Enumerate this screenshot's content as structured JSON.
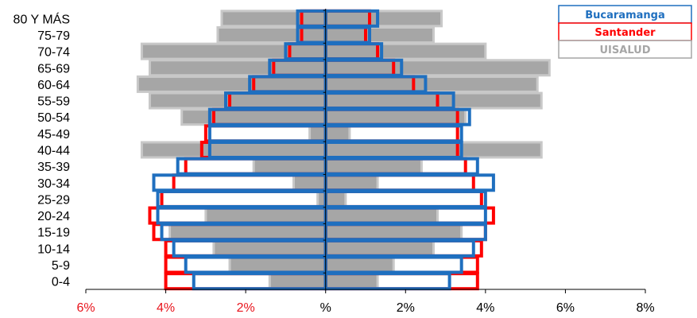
{
  "chart_data": {
    "type": "bar",
    "subtype": "population-pyramid",
    "title": "",
    "xlabel": "",
    "ylabel": "",
    "categories": [
      "80 Y MÁS",
      "75-79",
      "70-74",
      "65-69",
      "60-64",
      "55-59",
      "50-54",
      "45-49",
      "40-44",
      "35-39",
      "30-34",
      "25-29",
      "20-24",
      "15-19",
      "10-14",
      "5-9",
      "0-4"
    ],
    "xlim": [
      -6,
      8
    ],
    "x_tick_values": [
      -6,
      -4,
      -2,
      0,
      2,
      4,
      6,
      8
    ],
    "x_tick_labels": [
      "6%",
      "4%",
      "2%",
      "%",
      "2%",
      "4%",
      "6%",
      "8%"
    ],
    "x_tick_label_color_left": "#e8141c",
    "x_tick_label_color_right": "#000000",
    "legend_position": "top-right",
    "series": [
      {
        "name": "UISALUD",
        "style": "filled",
        "color": "#a6a6a6",
        "left": [
          2.6,
          2.7,
          4.6,
          4.4,
          4.7,
          4.4,
          3.6,
          0.4,
          4.6,
          1.8,
          0.8,
          0.2,
          3.0,
          3.9,
          2.8,
          2.4,
          1.4
        ],
        "right": [
          2.9,
          2.7,
          4.0,
          5.6,
          5.3,
          5.4,
          3.5,
          0.6,
          5.4,
          2.4,
          1.3,
          0.5,
          2.8,
          3.4,
          2.7,
          1.7,
          1.3
        ]
      },
      {
        "name": "Santander",
        "style": "outline",
        "color": "#ff0000",
        "left": [
          0.6,
          0.6,
          0.9,
          1.3,
          1.8,
          2.4,
          2.8,
          3.0,
          3.1,
          3.5,
          3.8,
          4.1,
          4.4,
          4.3,
          4.0,
          4.0,
          4.0
        ],
        "right": [
          1.1,
          1.0,
          1.3,
          1.7,
          2.2,
          2.8,
          3.3,
          3.3,
          3.3,
          3.5,
          3.7,
          3.9,
          4.2,
          4.0,
          3.9,
          3.8,
          3.8
        ]
      },
      {
        "name": "Bucaramanga",
        "style": "outline",
        "color": "#1f6fbf",
        "left": [
          0.7,
          0.7,
          1.0,
          1.4,
          1.9,
          2.5,
          2.9,
          2.9,
          2.9,
          3.7,
          4.3,
          4.2,
          4.2,
          4.1,
          3.8,
          3.5,
          3.3
        ],
        "right": [
          1.3,
          1.1,
          1.4,
          1.9,
          2.5,
          3.2,
          3.6,
          3.4,
          3.4,
          3.8,
          4.2,
          4.0,
          4.0,
          4.0,
          3.7,
          3.4,
          3.1
        ]
      }
    ]
  }
}
